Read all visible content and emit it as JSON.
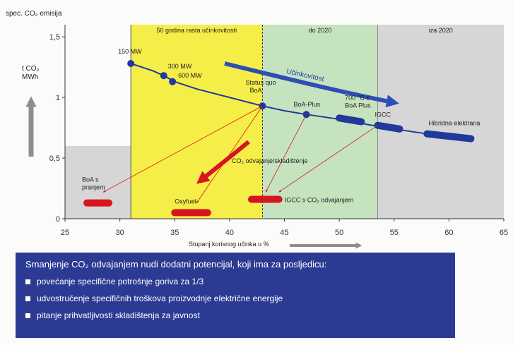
{
  "chart_data": {
    "type": "line",
    "xlim": [
      25,
      65
    ],
    "ylim": [
      0,
      1.6
    ],
    "x_ticks": [
      "25",
      "30",
      "35",
      "40",
      "45",
      "50",
      "55",
      "60",
      "65"
    ],
    "y_ticks": [
      "0",
      "0,5",
      "1",
      "1,5"
    ],
    "y_axis_title": "spec. CO₂ emisija",
    "y_unit_line1": "t CO₂",
    "y_unit_line2": "MWh",
    "x_axis_title": "Stupanj korisnog učinka u %",
    "zones": [
      {
        "label": "50 godina rasta učinkovitosti",
        "x_from": 31,
        "x_to": 43,
        "color": "#f6ee48"
      },
      {
        "label": "do 2020",
        "x_from": 43,
        "x_to": 53.5,
        "color": "#c6e3bf"
      },
      {
        "label": "iza 2020",
        "x_from": 53.5,
        "x_to": 65,
        "color": "#d6d6d6"
      }
    ],
    "capture_zone": {
      "y_to": 0.6,
      "color": "#d6d6d6"
    },
    "series": [
      {
        "color": "#1f3a9c",
        "x": [
          31,
          33,
          34,
          35,
          37,
          40,
          43,
          45,
          47,
          50,
          53,
          55,
          58,
          62
        ],
        "y": [
          1.28,
          1.22,
          1.18,
          1.13,
          1.07,
          1.0,
          0.93,
          0.89,
          0.86,
          0.82,
          0.77,
          0.74,
          0.7,
          0.66
        ]
      }
    ],
    "points": [
      {
        "label": "150 MW",
        "x": 31,
        "y": 1.28
      },
      {
        "label": "300 MW",
        "x": 34,
        "y": 1.18
      },
      {
        "label": "600 MW",
        "x": 34.8,
        "y": 1.13
      },
      {
        "label_line1": "Status quo",
        "label_line2": "BoA",
        "x": 43,
        "y": 0.93
      },
      {
        "label": "BoA-Plus",
        "x": 47,
        "y": 0.86
      }
    ],
    "thick_segments": [
      {
        "label_line1": "700 °C e",
        "label_line2": "BoA Plus",
        "x_from": 50,
        "x_to": 52,
        "y_from": 0.83,
        "y_to": 0.8
      },
      {
        "label": "IGCC",
        "x_from": 53.5,
        "x_to": 55.5,
        "y_from": 0.77,
        "y_to": 0.74
      },
      {
        "label": "Hibridna elektrana",
        "x_from": 58,
        "x_to": 62,
        "y_from": 0.7,
        "y_to": 0.66
      }
    ],
    "capture_markers": [
      {
        "label_line1": "BoA s",
        "label_line2": "pranjem",
        "x_from": 27,
        "x_to": 29,
        "y": 0.13
      },
      {
        "label": "Oxyfuel",
        "x_from": 35,
        "x_to": 38,
        "y": 0.05
      },
      {
        "label": "IGCC s CO₂ odvajanjem",
        "x_from": 42,
        "x_to": 44.5,
        "y": 0.16
      }
    ],
    "capture_label": "CO₂ odvajanje/skladištenje",
    "efficiency_label": "Učinkovitost",
    "colors": {
      "line": "#1f3a9c",
      "capture": "#d8151e",
      "arrow": "#2b4fb5",
      "divider": "#555555"
    }
  },
  "info": {
    "title": "Smanjenje CO₂ odvajanjem nudi dodatni potencijal, koji ima za posljedicu:",
    "bullets": [
      "povećanje specifične potrošnje goriva za 1/3",
      "udvostručenje specifičnih troškova proizvodnje električne energije",
      "pitanje prihvatljivosti skladištenja za javnost"
    ]
  }
}
